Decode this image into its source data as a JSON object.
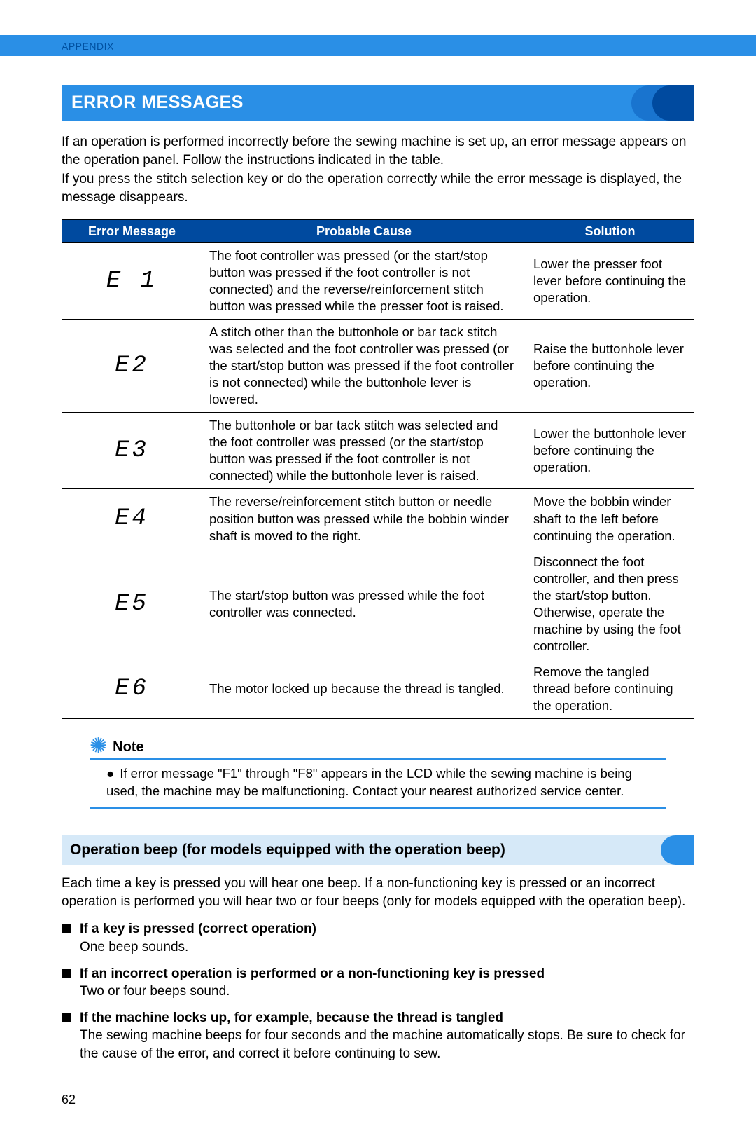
{
  "appendix_label": "APPENDIX",
  "title": "ERROR MESSAGES",
  "intro_p1": "If an operation is performed incorrectly before the sewing machine is set up, an error message appears on the operation panel. Follow the instructions indicated in the table.",
  "intro_p2": "If you press the stitch selection key or do the operation correctly while the error message is displayed, the message disappears.",
  "table": {
    "headers": {
      "c1": "Error Message",
      "c2": "Probable Cause",
      "c3": "Solution"
    },
    "rows": [
      {
        "code": "E 1",
        "cause": "The foot controller was pressed (or the start/stop button was pressed if the foot controller is not connected) and the reverse/reinforcement stitch button was pressed while the presser foot is raised.",
        "solution": "Lower the presser foot lever before continuing the operation."
      },
      {
        "code": "E2",
        "cause": "A stitch other than the buttonhole or bar tack stitch was selected and the foot controller was pressed (or the start/stop button was pressed if the foot controller is not connected) while the buttonhole lever is lowered.",
        "solution": "Raise the buttonhole lever before continuing the operation."
      },
      {
        "code": "E3",
        "cause": "The buttonhole or bar tack stitch was selected and the foot controller was pressed (or the start/stop button was pressed if the foot controller is not connected) while the buttonhole lever is raised.",
        "solution": "Lower the buttonhole lever before continuing the operation."
      },
      {
        "code": "E4",
        "cause": "The reverse/reinforcement stitch button or needle position button was pressed while the bobbin winder shaft is moved to the right.",
        "solution": "Move the bobbin winder shaft to the left before continuing the operation."
      },
      {
        "code": "E5",
        "cause": "The start/stop button was pressed while the foot controller was connected.",
        "solution": "Disconnect the foot controller, and then press the start/stop button. Otherwise, operate the machine by using the foot controller."
      },
      {
        "code": "E6",
        "cause": "The motor locked up because the thread is tangled.",
        "solution": "Remove the tangled thread before continuing the operation."
      }
    ]
  },
  "note": {
    "label": "Note",
    "text": "If error message \"F1\" through \"F8\" appears in the LCD while the sewing machine is being used, the machine may be malfunctioning. Contact your nearest authorized service center."
  },
  "subtitle": "Operation beep (for models equipped with the operation beep)",
  "beep_intro": "Each time a key is pressed you will hear one beep. If a non-functioning key is pressed or an incorrect operation is performed you will hear two or four beeps (only for models equipped with the operation beep).",
  "beep_items": [
    {
      "head": "If a key is pressed (correct operation)",
      "body": "One beep sounds."
    },
    {
      "head": "If an incorrect operation is performed or a non-functioning key is pressed",
      "body": "Two or four beeps sound."
    },
    {
      "head": "If the machine locks up, for example, because the thread is tangled",
      "body": "The sewing machine beeps for four seconds and the machine automatically stops. Be sure to check for the cause of the error, and correct it before continuing to sew."
    }
  ],
  "page_number": "62",
  "colors": {
    "header_blue": "#2a8fe6",
    "dark_blue": "#004a9f",
    "mid_blue": "#1974cf",
    "light_blue": "#d6e9f8"
  }
}
